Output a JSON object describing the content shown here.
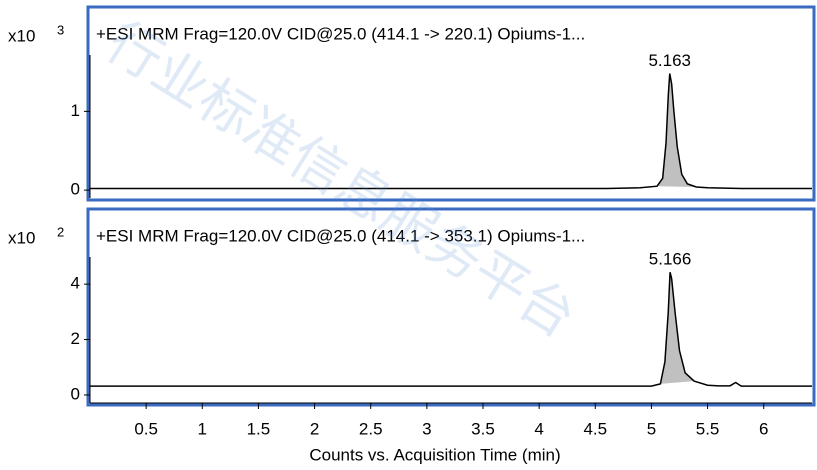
{
  "watermark": "行业标准信息服务平台",
  "chart_data": [
    {
      "type": "line",
      "title": "+ESI MRM Frag=120.0V CID@25.0 (414.1 -> 220.1) Opiums-1...",
      "y_multiplier": {
        "base": "x10",
        "exponent": "3"
      },
      "xlim": [
        0,
        6.43
      ],
      "ylim": [
        -0.1,
        2.3
      ],
      "yticks": [
        0,
        1
      ],
      "series": [
        {
          "color": "#000000",
          "x": [
            0,
            4.6,
            4.9,
            5.05,
            5.1,
            5.13,
            5.15,
            5.163,
            5.18,
            5.2,
            5.23,
            5.27,
            5.32,
            5.4,
            5.5,
            5.8,
            6.43
          ],
          "values": [
            0.02,
            0.02,
            0.03,
            0.05,
            0.15,
            0.6,
            1.2,
            1.48,
            1.35,
            1.0,
            0.55,
            0.2,
            0.08,
            0.04,
            0.03,
            0.02,
            0.02
          ]
        }
      ],
      "peak_area": {
        "start": 5.05,
        "end": 5.4,
        "color": "#c0c0c0"
      },
      "annotations": [
        {
          "text": "5.163",
          "x": 5.163,
          "y": 1.48
        }
      ]
    },
    {
      "type": "line",
      "title": "+ESI MRM Frag=120.0V CID@25.0 (414.1 -> 353.1) Opiums-1...",
      "y_multiplier": {
        "base": "x10",
        "exponent": "2"
      },
      "xlim": [
        0,
        6.43
      ],
      "ylim": [
        -0.29,
        6.64
      ],
      "yticks": [
        0,
        2,
        4
      ],
      "xticks": [
        0.5,
        1,
        1.5,
        2,
        2.5,
        3,
        3.5,
        4,
        4.5,
        5,
        5.5,
        6
      ],
      "xlabel": "Counts vs. Acquisition Time (min)",
      "series": [
        {
          "color": "#000000",
          "x": [
            0,
            5.0,
            5.08,
            5.12,
            5.15,
            5.166,
            5.18,
            5.21,
            5.25,
            5.3,
            5.38,
            5.5,
            5.6,
            5.7,
            5.75,
            5.8,
            6.43
          ],
          "values": [
            0.32,
            0.32,
            0.4,
            1.2,
            3.0,
            4.43,
            4.2,
            3.0,
            1.6,
            0.8,
            0.5,
            0.35,
            0.33,
            0.33,
            0.45,
            0.32,
            0.32
          ]
        }
      ],
      "peak_area": {
        "start": 5.08,
        "end": 5.4,
        "color": "#c0c0c0"
      },
      "annotations": [
        {
          "text": "5.166",
          "x": 5.166,
          "y": 4.43
        }
      ]
    }
  ]
}
